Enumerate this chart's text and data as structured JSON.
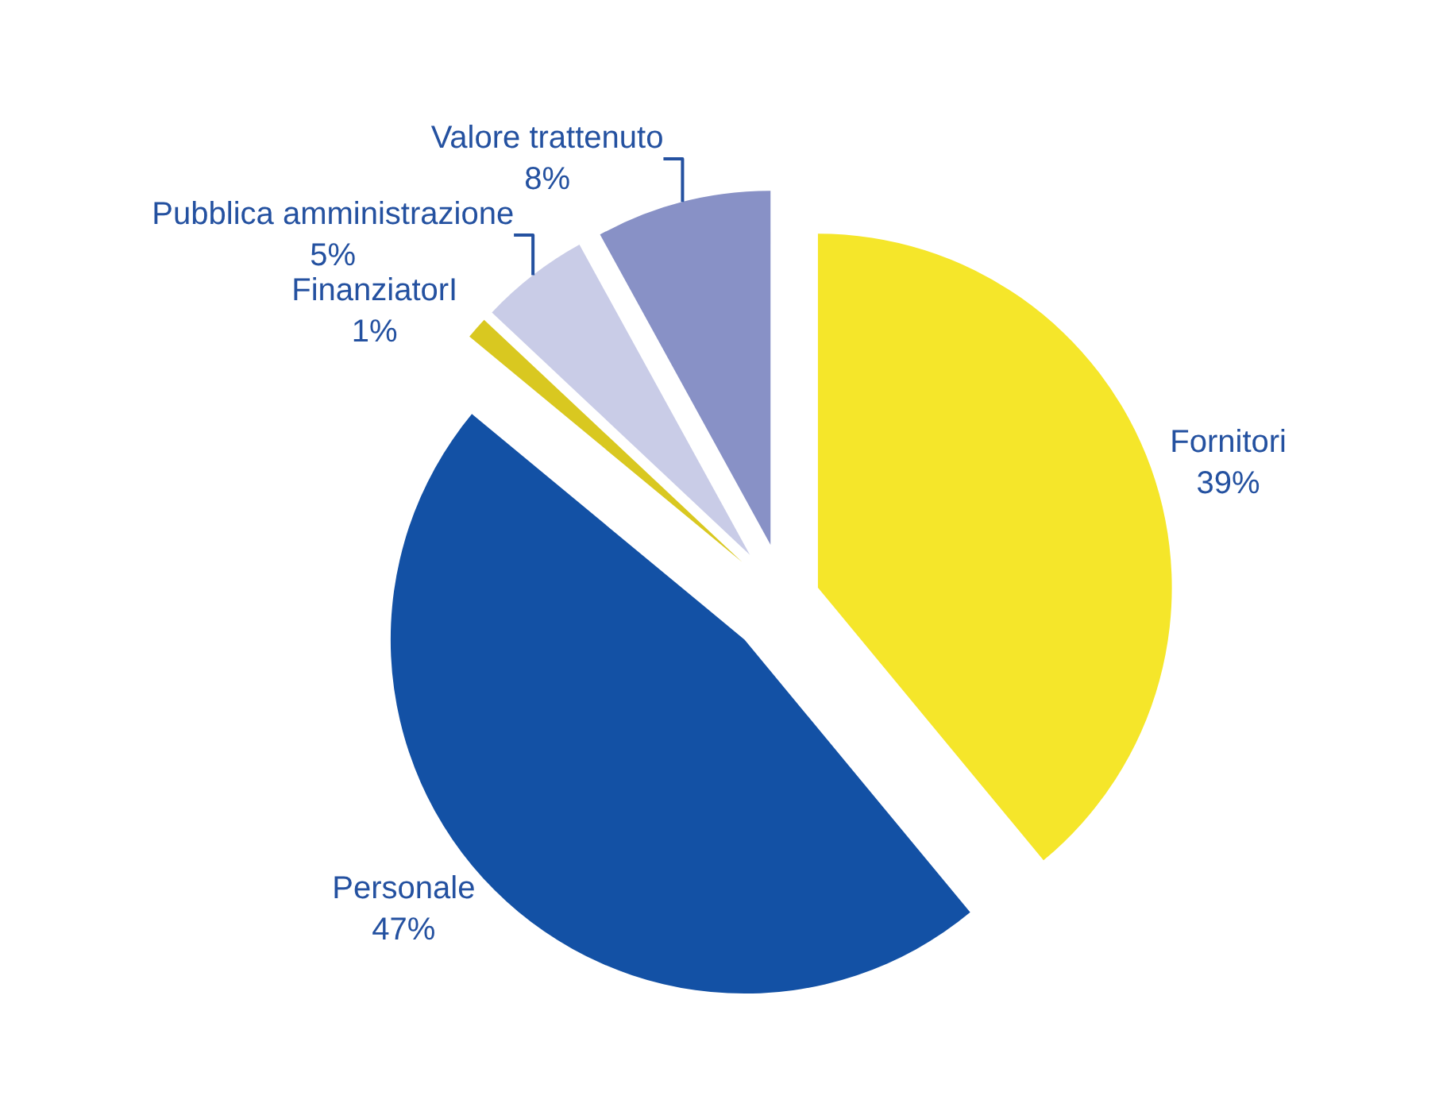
{
  "chart_data": {
    "type": "pie",
    "categories": [
      "Fornitori",
      "Personale",
      "FinanziatorI",
      "Pubblica amministrazione",
      "Valore trattenuto"
    ],
    "values": [
      39,
      47,
      1,
      5,
      8
    ],
    "value_labels": [
      "39%",
      "47%",
      "1%",
      "5%",
      "8%"
    ],
    "colors": [
      "#f5e62a",
      "#1351a5",
      "#d9c820",
      "#c9cce7",
      "#8891c6"
    ],
    "legend": false
  }
}
